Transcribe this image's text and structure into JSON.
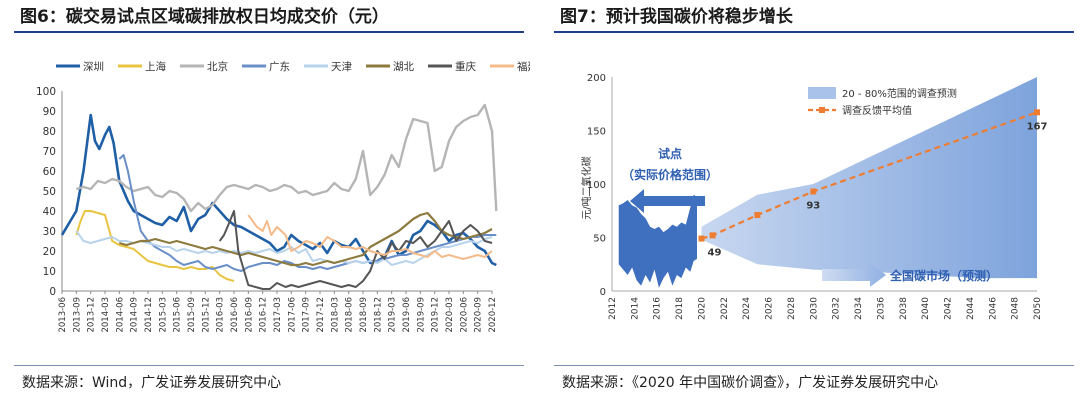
{
  "left": {
    "title": "图6：碳交易试点区域碳排放权日均成交价（元）",
    "source": "数据来源：Wind，广发证券发展研究中心"
  },
  "right": {
    "title": "图7：预计我国碳价将稳步增长",
    "source": "数据来源：《2020 年中国碳价调查》，广发证券发展研究中心"
  },
  "chart_data": [
    {
      "type": "line",
      "title": "",
      "xlabel": "",
      "ylabel": "",
      "ylim": [
        0,
        100
      ],
      "yticks": [
        0,
        10,
        20,
        30,
        40,
        50,
        60,
        70,
        80,
        90,
        100
      ],
      "xticks": [
        "2013-06",
        "2013-09",
        "2013-12",
        "2014-03",
        "2014-06",
        "2014-09",
        "2014-12",
        "2015-03",
        "2015-06",
        "2015-09",
        "2015-12",
        "2016-03",
        "2016-06",
        "2016-09",
        "2016-12",
        "2017-03",
        "2017-06",
        "2017-09",
        "2017-12",
        "2018-03",
        "2018-06",
        "2018-09",
        "2018-12",
        "2019-03",
        "2019-06",
        "2019-09",
        "2019-12",
        "2020-03",
        "2020-06",
        "2020-09",
        "2020-12"
      ],
      "grid": false,
      "legend": "top",
      "series": [
        {
          "name": "深圳",
          "color": "#1f5fa6",
          "width": 2.6,
          "x": [
            0,
            1,
            1.5,
            2,
            2.3,
            2.6,
            3,
            3.3,
            3.6,
            4,
            4.3,
            4.6,
            5,
            5.5,
            6,
            6.5,
            7,
            7.5,
            8,
            8.5,
            9,
            9.5,
            10,
            10.5,
            11,
            11.5,
            12,
            12.5,
            13,
            13.5,
            14,
            14.5,
            15,
            15.5,
            16,
            16.5,
            17,
            17.5,
            18,
            18.5,
            19,
            19.5,
            20,
            20.5,
            21,
            21.5,
            22,
            22.5,
            23,
            23.5,
            24,
            24.5,
            25,
            25.5,
            26,
            26.5,
            27,
            27.5,
            28,
            28.5,
            29,
            29.5,
            30,
            30.3
          ],
          "values": [
            28,
            40,
            60,
            88,
            75,
            71,
            78,
            82,
            74,
            55,
            50,
            45,
            40,
            38,
            36,
            34,
            33,
            37,
            35,
            42,
            30,
            36,
            38,
            44,
            40,
            36,
            33,
            32,
            30,
            28,
            26,
            24,
            20,
            22,
            28,
            25,
            23,
            21,
            24,
            19,
            25,
            23,
            22,
            26,
            20,
            14,
            15,
            17,
            25,
            18,
            20,
            28,
            30,
            35,
            33,
            30,
            25,
            28,
            29,
            26,
            22,
            20,
            14,
            13
          ]
        },
        {
          "name": "上海",
          "color": "#e8c440",
          "width": 2,
          "x": [
            1,
            1.3,
            1.6,
            2,
            2.5,
            3,
            3.5,
            4,
            4.5,
            5,
            5.5,
            6,
            6.5,
            7,
            7.5,
            8,
            8.5,
            9,
            9.5,
            10,
            10.5,
            11,
            11.5,
            12
          ],
          "values": [
            28,
            35,
            40,
            40,
            39,
            38,
            25,
            23,
            22,
            21,
            18,
            15,
            14,
            13,
            12,
            12,
            11,
            12,
            11,
            11,
            12,
            8,
            6,
            5
          ]
        },
        {
          "name": "北京",
          "color": "#b5b5b5",
          "width": 2.4,
          "x": [
            1,
            1.5,
            2,
            2.5,
            3,
            3.5,
            4,
            4.5,
            5,
            5.5,
            6,
            6.5,
            7,
            7.5,
            8,
            8.5,
            9,
            9.5,
            10,
            10.5,
            11,
            11.5,
            12,
            12.5,
            13,
            13.5,
            14,
            14.5,
            15,
            15.5,
            16,
            16.5,
            17,
            17.5,
            18,
            18.5,
            19,
            19.5,
            20,
            20.5,
            21,
            21.5,
            22,
            22.5,
            23,
            23.5,
            24,
            24.5,
            25,
            25.5,
            26,
            26.5,
            27,
            27.5,
            28,
            28.5,
            29,
            29.5,
            30,
            30.3
          ],
          "values": [
            51,
            52,
            51,
            55,
            54,
            56,
            55,
            52,
            50,
            51,
            52,
            48,
            47,
            50,
            49,
            46,
            40,
            44,
            41,
            43,
            48,
            52,
            53,
            52,
            51,
            53,
            52,
            50,
            51,
            53,
            52,
            49,
            50,
            48,
            49,
            50,
            54,
            51,
            50,
            56,
            70,
            48,
            52,
            58,
            68,
            62,
            76,
            86,
            85,
            84,
            60,
            62,
            75,
            82,
            85,
            87,
            88,
            93,
            80,
            40
          ]
        },
        {
          "name": "广东",
          "color": "#6a8fc8",
          "width": 2,
          "x": [
            4,
            4.3,
            4.6,
            5,
            5.5,
            6,
            6.5,
            7,
            7.5,
            8,
            8.5,
            9,
            9.5,
            10,
            10.5,
            11,
            11.5,
            12,
            12.5,
            13,
            13.5,
            14,
            14.5,
            15,
            15.5,
            16,
            16.5,
            17,
            17.5,
            18,
            18.5,
            19,
            19.5,
            20,
            20.5,
            21,
            21.5,
            22,
            22.5,
            23,
            23.5,
            24,
            24.5,
            25,
            25.5,
            26,
            26.5,
            27,
            27.5,
            28,
            28.5,
            29,
            29.5,
            30,
            30.3
          ],
          "values": [
            66,
            68,
            60,
            45,
            30,
            25,
            22,
            20,
            18,
            15,
            13,
            14,
            15,
            12,
            11,
            12,
            13,
            11,
            10,
            12,
            13,
            14,
            14,
            13,
            15,
            14,
            12,
            12,
            11,
            12,
            11,
            12,
            13,
            14,
            15,
            14,
            15,
            15,
            16,
            17,
            18,
            18,
            19,
            20,
            21,
            22,
            23,
            24,
            25,
            26,
            27,
            27,
            28,
            28,
            28
          ]
        },
        {
          "name": "天津",
          "color": "#b9d3ec",
          "width": 2,
          "x": [
            1,
            1.5,
            2,
            2.5,
            3,
            3.5,
            4,
            4.5,
            5,
            5.5,
            6,
            6.5,
            7,
            7.5,
            8,
            8.5,
            9,
            9.5,
            10,
            10.5,
            11,
            11.5,
            12,
            12.5,
            13,
            13.5,
            14,
            14.5,
            15,
            15.5,
            16,
            16.5,
            17,
            17.5,
            18,
            18.5,
            19,
            19.5,
            20,
            20.5,
            21,
            21.5,
            22,
            22.5,
            23,
            23.5,
            24,
            24.5,
            25,
            25.5,
            26,
            26.5,
            27,
            27.5,
            28,
            28.5,
            29,
            29.5,
            30
          ],
          "values": [
            30,
            25,
            24,
            25,
            26,
            27,
            25,
            25,
            24,
            25,
            24,
            23,
            22,
            22,
            20,
            21,
            20,
            19,
            20,
            19,
            20,
            19,
            20,
            19,
            20,
            19,
            20,
            21,
            19,
            20,
            22,
            19,
            21,
            15,
            16,
            15,
            14,
            15,
            14,
            15,
            14,
            15,
            14,
            16,
            13,
            14,
            15,
            14,
            16,
            18,
            20,
            22,
            22,
            23,
            24,
            25,
            24,
            26,
            27
          ]
        },
        {
          "name": "湖北",
          "color": "#8c7a3e",
          "width": 2.2,
          "x": [
            4,
            4.5,
            5,
            5.5,
            6,
            6.5,
            7,
            7.5,
            8,
            8.5,
            9,
            9.5,
            10,
            10.5,
            11,
            11.5,
            12,
            12.5,
            13,
            13.5,
            14,
            14.5,
            15,
            15.5,
            16,
            16.5,
            17,
            17.5,
            18,
            18.5,
            19,
            19.5,
            20,
            20.5,
            21,
            21.5,
            22,
            22.5,
            23,
            23.5,
            24,
            24.5,
            25,
            25.5,
            26,
            26.5,
            27,
            27.5,
            28,
            28.5,
            29,
            29.5,
            30
          ],
          "values": [
            24,
            23,
            24,
            25,
            25,
            26,
            25,
            24,
            25,
            24,
            23,
            22,
            21,
            22,
            21,
            20,
            19,
            18,
            19,
            18,
            17,
            16,
            15,
            14,
            13,
            13,
            14,
            13,
            14,
            15,
            14,
            15,
            16,
            17,
            18,
            22,
            24,
            26,
            28,
            30,
            33,
            36,
            38,
            39,
            35,
            30,
            28,
            27,
            26,
            27,
            28,
            29,
            31
          ]
        },
        {
          "name": "重庆",
          "color": "#555555",
          "width": 2,
          "x": [
            11,
            11.3,
            11.6,
            12,
            12.3,
            12.5,
            13,
            13.5,
            14,
            14.5,
            15,
            15.3,
            15.6,
            16,
            16.5,
            17,
            17.5,
            18,
            18.5,
            19,
            19.5,
            20,
            20.5,
            21,
            21.5,
            22,
            22.5,
            23,
            23.5,
            24,
            24.5,
            25,
            25.5,
            26,
            26.5,
            27,
            27.5,
            28,
            28.5,
            29,
            29.5,
            30
          ],
          "values": [
            25,
            28,
            33,
            40,
            20,
            15,
            3,
            2,
            1,
            1,
            4,
            3,
            2,
            3,
            2,
            3,
            4,
            5,
            4,
            3,
            2,
            3,
            2,
            5,
            10,
            20,
            16,
            24,
            20,
            25,
            24,
            27,
            22,
            25,
            30,
            35,
            25,
            30,
            33,
            30,
            25,
            24
          ]
        },
        {
          "name": "福建",
          "color": "#f4bb8a",
          "width": 2,
          "x": [
            13,
            13.3,
            13.6,
            14,
            14.3,
            14.6,
            15,
            15.3,
            15.6,
            16,
            16.5,
            17,
            17.5,
            18,
            18.5,
            19,
            19.5,
            20,
            20.5,
            21,
            21.5,
            22,
            22.5,
            23,
            23.5,
            24,
            24.5,
            25,
            25.5,
            26,
            26.5,
            27,
            27.5,
            28,
            28.5,
            29,
            29.5,
            30
          ],
          "values": [
            38,
            35,
            32,
            30,
            35,
            28,
            32,
            30,
            28,
            20,
            22,
            25,
            24,
            22,
            27,
            25,
            22,
            22,
            21,
            22,
            20,
            19,
            18,
            20,
            20,
            21,
            19,
            18,
            17,
            20,
            17,
            18,
            17,
            16,
            17,
            18,
            17,
            20
          ]
        }
      ]
    },
    {
      "type": "area",
      "title": "",
      "xlabel": "",
      "ylabel": "元/吨二氧化碳",
      "ylim": [
        0,
        200
      ],
      "yticks": [
        0,
        50,
        100,
        150,
        200
      ],
      "xlim": [
        2012,
        2050
      ],
      "xticks": [
        2012,
        2014,
        2016,
        2018,
        2020,
        2022,
        2024,
        2026,
        2028,
        2030,
        2032,
        2034,
        2036,
        2038,
        2040,
        2042,
        2044,
        2046,
        2048,
        2050
      ],
      "grid": false,
      "legend": "top-center",
      "series": [
        {
          "name": "20 - 80%范围的调查预测",
          "type": "band",
          "color": "#9db8e4",
          "x": [
            2020,
            2025,
            2030,
            2035,
            2040,
            2045,
            2050
          ],
          "low": [
            48,
            25,
            20,
            18,
            15,
            12,
            12
          ],
          "high": [
            60,
            90,
            100,
            125,
            150,
            175,
            200
          ]
        },
        {
          "name": "调查反馈平均值",
          "type": "line",
          "color": "#ee7d31",
          "x": [
            2020,
            2021,
            2025,
            2030,
            2050
          ],
          "values": [
            49,
            52,
            71,
            93,
            167
          ]
        }
      ],
      "data_labels": [
        {
          "x": 2020,
          "value": 49,
          "text": "49"
        },
        {
          "x": 2030,
          "value": 93,
          "text": "93"
        },
        {
          "x": 2050,
          "value": 167,
          "text": "167"
        }
      ],
      "pilot_range": {
        "x_start": 2012.6,
        "x_end": 2019.6,
        "x": [
          2012.6,
          2013.0,
          2013.4,
          2013.8,
          2014.2,
          2014.6,
          2015.0,
          2015.4,
          2015.8,
          2016.2,
          2016.6,
          2017.0,
          2017.4,
          2017.8,
          2018.2,
          2018.6,
          2019.0,
          2019.3,
          2019.6
        ],
        "high": [
          80,
          82,
          85,
          80,
          78,
          72,
          68,
          60,
          58,
          60,
          55,
          58,
          62,
          60,
          64,
          62,
          78,
          90,
          88
        ],
        "low": [
          25,
          20,
          15,
          22,
          10,
          5,
          15,
          8,
          20,
          3,
          12,
          18,
          5,
          15,
          12,
          22,
          18,
          28,
          30
        ],
        "color": "#3f6fbf"
      },
      "annotations": [
        {
          "text": "试点",
          "color": "#2f5fb0"
        },
        {
          "text": "（实际价格范围）",
          "color": "#2f5fb0"
        },
        {
          "text": "全国碳市场（预测）",
          "color": "#2f5fb0"
        }
      ]
    }
  ]
}
